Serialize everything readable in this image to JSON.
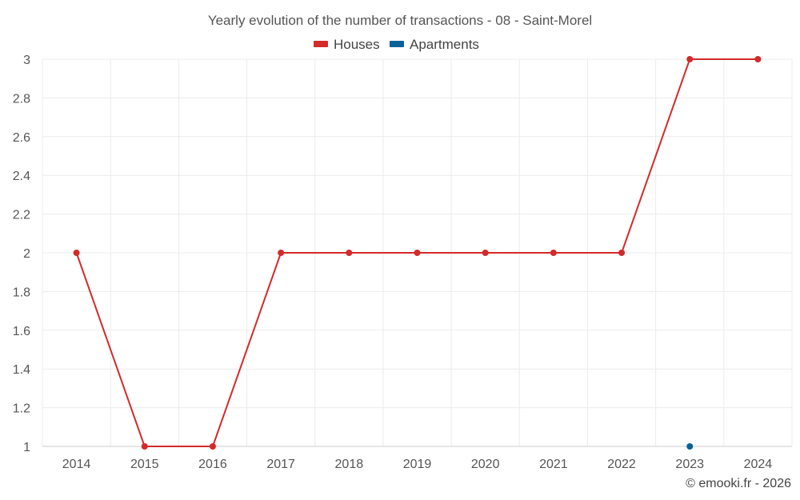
{
  "chart_data": {
    "type": "line",
    "title": "Yearly evolution of the number of transactions - 08 - Saint-Morel",
    "categories": [
      "2014",
      "2015",
      "2016",
      "2017",
      "2018",
      "2019",
      "2020",
      "2021",
      "2022",
      "2023",
      "2024"
    ],
    "series": [
      {
        "name": "Houses",
        "color": "#d32a2a",
        "values": [
          2,
          1,
          1,
          2,
          2,
          2,
          2,
          2,
          2,
          3,
          3
        ]
      },
      {
        "name": "Apartments",
        "color": "#0a6196",
        "values": [
          null,
          null,
          null,
          null,
          null,
          null,
          null,
          null,
          null,
          1,
          null
        ]
      }
    ],
    "yticks": [
      "1",
      "1.2",
      "1.4",
      "1.6",
      "1.8",
      "2",
      "2.2",
      "2.4",
      "2.6",
      "2.8",
      "3"
    ],
    "ylim": [
      1,
      3
    ],
    "xlabel": "",
    "ylabel": "",
    "legend_position": "top-center",
    "grid": true
  },
  "credit": "© emooki.fr - 2026"
}
